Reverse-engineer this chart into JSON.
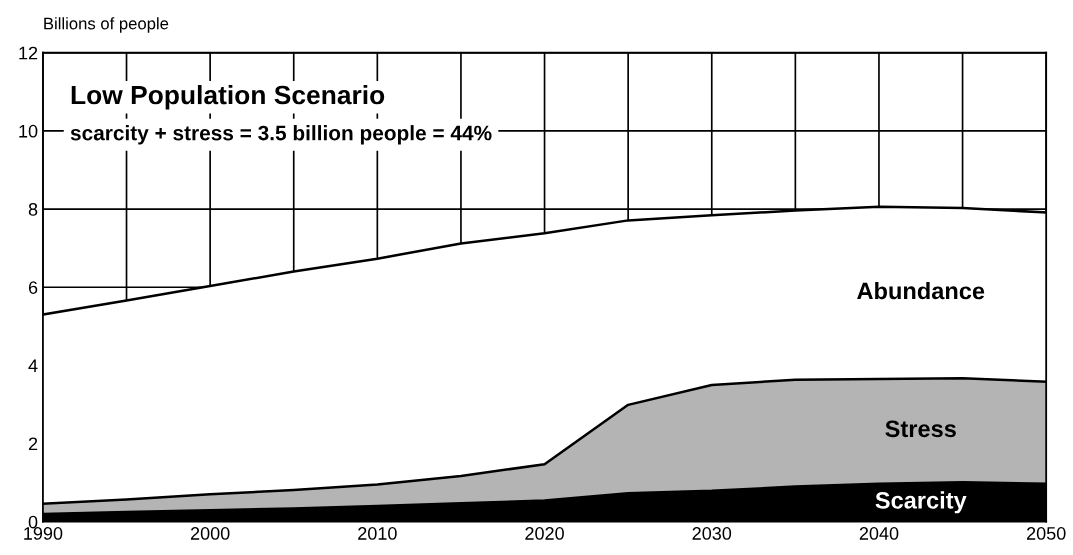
{
  "chart_data": {
    "type": "area",
    "stacked": true,
    "title": "Low Population Scenario",
    "subtitle": "scarcity + stress = 3.5 billion people = 44%",
    "ylabel": "Billions of people",
    "x": [
      1990,
      1995,
      2000,
      2005,
      2010,
      2015,
      2020,
      2025,
      2030,
      2035,
      2040,
      2045,
      2050
    ],
    "series": [
      {
        "name": "Scarcity",
        "color": "#000000",
        "values": [
          0.2,
          0.25,
          0.29,
          0.34,
          0.4,
          0.47,
          0.54,
          0.73,
          0.79,
          0.9,
          0.97,
          1.01,
          0.97
        ]
      },
      {
        "name": "Stress",
        "color": "#b4b4b4",
        "values": [
          0.26,
          0.32,
          0.41,
          0.47,
          0.55,
          0.7,
          0.93,
          2.26,
          2.71,
          2.73,
          2.68,
          2.66,
          2.61
        ]
      },
      {
        "name": "Abundance",
        "color": "#ffffff",
        "values": [
          4.84,
          5.09,
          5.33,
          5.59,
          5.78,
          5.95,
          5.91,
          4.72,
          4.34,
          4.33,
          4.41,
          4.36,
          4.33
        ]
      }
    ],
    "xlim": [
      1990,
      2050
    ],
    "ylim": [
      0,
      12
    ],
    "xticks": [
      1990,
      {
        "value": 1995,
        "label": null
      },
      2000,
      {
        "value": 2005,
        "label": null
      },
      2010,
      {
        "value": 2015,
        "label": null
      },
      2020,
      {
        "value": 2025,
        "label": null
      },
      2030,
      {
        "value": 2035,
        "label": null
      },
      2040,
      {
        "value": 2045,
        "label": null
      },
      2050
    ],
    "yticks": [
      0,
      2,
      4,
      6,
      8,
      10,
      12
    ],
    "grid": true,
    "legend": false
  }
}
